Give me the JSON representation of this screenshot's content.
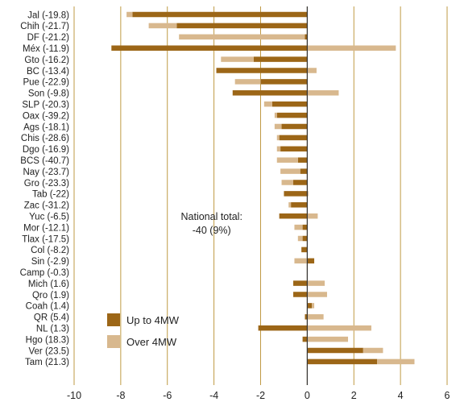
{
  "chart_data": {
    "type": "bar",
    "orientation": "horizontal",
    "stacking": "diverging-stacked",
    "categories": [
      "Jal (-19.8)",
      "Chih (-21.7)",
      "DF (-21.2)",
      "Méx (-11.9)",
      "Gto (-16.2)",
      "BC (-13.4)",
      "Pue (-22.9)",
      "Son (-9.8)",
      "SLP (-20.3)",
      "Oax (-39.2)",
      "Ags (-18.1)",
      "Chis (-28.6)",
      "Dgo (-16.9)",
      "BCS (-40.7)",
      "Nay (-23.7)",
      "Gro (-23.3)",
      "Tab (-22)",
      "Zac (-31.2)",
      "Yuc (-6.5)",
      "Mor (-12.1)",
      "Tlax (-17.5)",
      "Col (-8.2)",
      "Sin (-2.9)",
      "Camp (-0.3)",
      "Mich (1.6)",
      "Qro (1.9)",
      "Coah (1.4)",
      "QR (5.4)",
      "NL (1.3)",
      "Hgo (18.3)",
      "Ver (23.5)",
      "Tam (21.3)"
    ],
    "series": [
      {
        "name": "Up to 4MW",
        "color": "#9c6617",
        "values": [
          -7.5,
          -5.6,
          -0.1,
          -8.4,
          -2.3,
          -3.9,
          -2.0,
          -3.2,
          -1.5,
          -1.3,
          -1.1,
          -1.2,
          -1.15,
          -0.4,
          -0.3,
          -0.6,
          -1.0,
          -0.7,
          -1.2,
          -0.2,
          -0.2,
          -0.25,
          0.3,
          0.0,
          -0.6,
          -0.6,
          0.2,
          -0.1,
          -2.1,
          -0.2,
          2.4,
          3.0
        ]
      },
      {
        "name": "Over 4MW",
        "color": "#d8b88e",
        "values": [
          -0.25,
          -1.2,
          -5.4,
          3.8,
          -1.4,
          0.4,
          -1.1,
          1.35,
          -0.35,
          -0.1,
          -0.3,
          -0.1,
          -0.15,
          -0.9,
          -0.85,
          -0.5,
          0.05,
          -0.1,
          0.45,
          -0.35,
          -0.2,
          0.0,
          -0.55,
          0.0,
          0.75,
          0.85,
          0.1,
          0.7,
          2.75,
          1.75,
          0.85,
          1.6
        ]
      }
    ],
    "xlim": [
      -10,
      6
    ],
    "xticks": [
      -10,
      -8,
      -6,
      -4,
      -2,
      0,
      2,
      4,
      6
    ],
    "xtick_labels": [
      "-10",
      "-8",
      "-6",
      "-4",
      "-2",
      "0",
      "2",
      "4",
      "6"
    ],
    "grid": "vertical",
    "legend_position": "bottom-left",
    "annotation": {
      "line1": "National total:",
      "line2": "-40 (9%)",
      "x": -4.1
    }
  }
}
